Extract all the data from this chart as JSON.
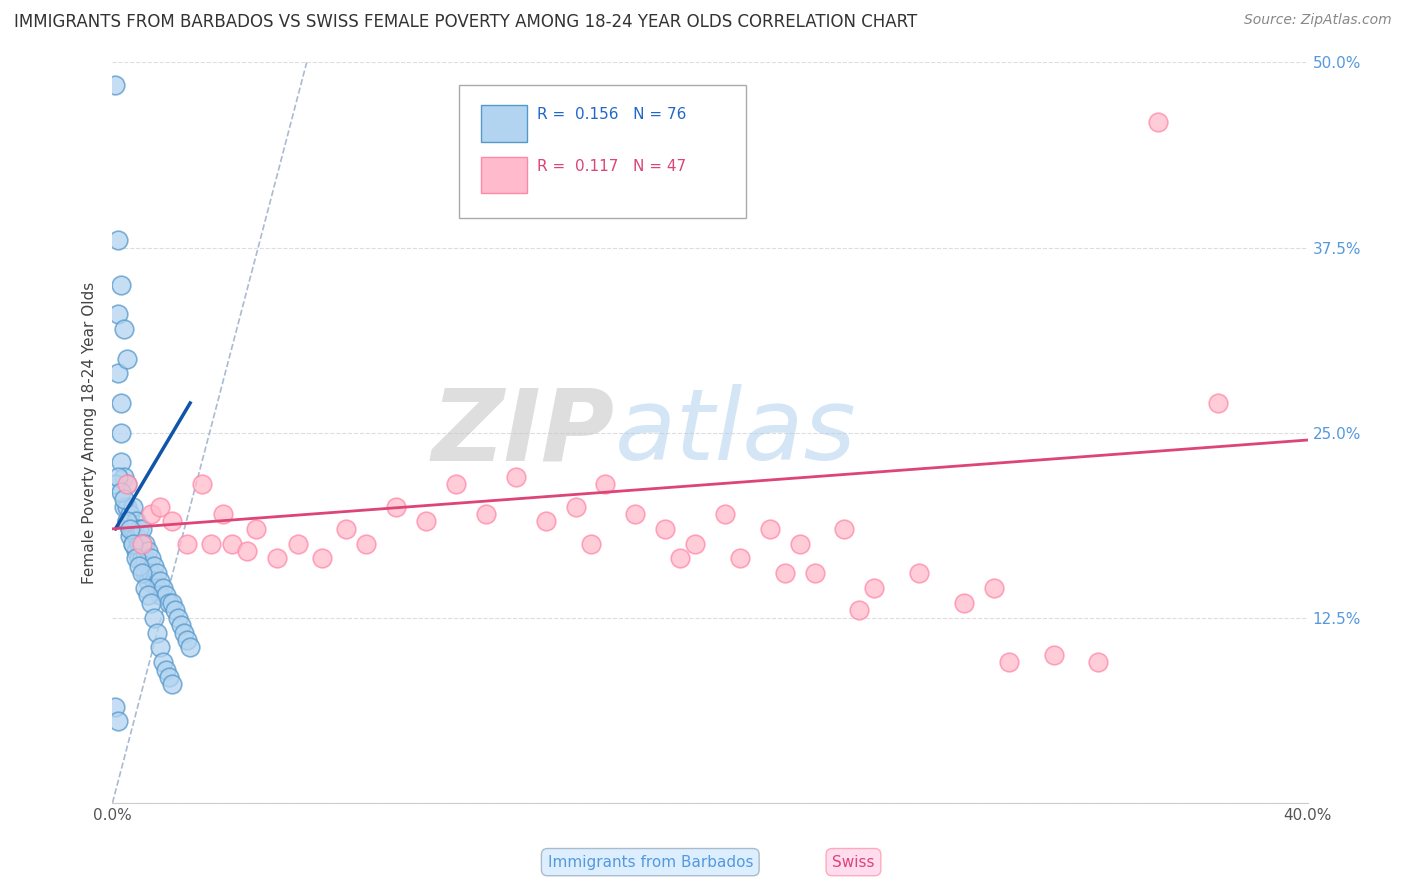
{
  "title": "IMMIGRANTS FROM BARBADOS VS SWISS FEMALE POVERTY AMONG 18-24 YEAR OLDS CORRELATION CHART",
  "source": "Source: ZipAtlas.com",
  "ylabel": "Female Poverty Among 18-24 Year Olds",
  "xlim": [
    0.0,
    0.4
  ],
  "ylim": [
    0.0,
    0.5
  ],
  "xticks": [
    0.0,
    0.4
  ],
  "yticks": [
    0.0,
    0.125,
    0.25,
    0.375,
    0.5
  ],
  "xticklabels": [
    "0.0%",
    "40.0%"
  ],
  "yticklabels": [
    "",
    "12.5%",
    "25.0%",
    "37.5%",
    "50.0%"
  ],
  "right_yticklabels": [
    "",
    "12.5%",
    "25.0%",
    "37.5%",
    "50.0%"
  ],
  "legend_entries": [
    {
      "label": "Immigrants from Barbados",
      "R": "0.156",
      "N": "76",
      "color_face": "#b3d4f0",
      "color_edge": "#5599cc"
    },
    {
      "label": "Swiss",
      "R": "0.117",
      "N": "47",
      "color_face": "#ffbbcc",
      "color_edge": "#ff88aa"
    }
  ],
  "watermark": "ZIPatlas",
  "background_color": "#ffffff",
  "grid_color": "#dddddd",
  "blue_scatter_x": [
    0.001,
    0.002,
    0.002,
    0.003,
    0.003,
    0.003,
    0.004,
    0.004,
    0.005,
    0.005,
    0.005,
    0.006,
    0.006,
    0.006,
    0.007,
    0.007,
    0.007,
    0.008,
    0.008,
    0.008,
    0.009,
    0.009,
    0.009,
    0.01,
    0.01,
    0.01,
    0.011,
    0.011,
    0.011,
    0.012,
    0.012,
    0.012,
    0.013,
    0.013,
    0.014,
    0.014,
    0.015,
    0.015,
    0.016,
    0.016,
    0.017,
    0.018,
    0.019,
    0.02,
    0.021,
    0.022,
    0.023,
    0.024,
    0.025,
    0.026,
    0.001,
    0.002,
    0.003,
    0.004,
    0.005,
    0.006,
    0.007,
    0.008,
    0.009,
    0.01,
    0.011,
    0.012,
    0.013,
    0.014,
    0.015,
    0.016,
    0.017,
    0.018,
    0.019,
    0.02,
    0.002,
    0.003,
    0.004,
    0.005,
    0.001,
    0.002
  ],
  "blue_scatter_y": [
    0.485,
    0.33,
    0.29,
    0.27,
    0.25,
    0.23,
    0.22,
    0.2,
    0.215,
    0.2,
    0.19,
    0.195,
    0.185,
    0.18,
    0.2,
    0.185,
    0.175,
    0.19,
    0.18,
    0.17,
    0.185,
    0.175,
    0.165,
    0.185,
    0.175,
    0.165,
    0.175,
    0.165,
    0.155,
    0.17,
    0.16,
    0.15,
    0.165,
    0.155,
    0.16,
    0.15,
    0.155,
    0.145,
    0.15,
    0.14,
    0.145,
    0.14,
    0.135,
    0.135,
    0.13,
    0.125,
    0.12,
    0.115,
    0.11,
    0.105,
    0.215,
    0.22,
    0.21,
    0.205,
    0.19,
    0.185,
    0.175,
    0.165,
    0.16,
    0.155,
    0.145,
    0.14,
    0.135,
    0.125,
    0.115,
    0.105,
    0.095,
    0.09,
    0.085,
    0.08,
    0.38,
    0.35,
    0.32,
    0.3,
    0.065,
    0.055
  ],
  "pink_scatter_x": [
    0.005,
    0.01,
    0.013,
    0.016,
    0.02,
    0.025,
    0.03,
    0.033,
    0.037,
    0.04,
    0.045,
    0.048,
    0.055,
    0.062,
    0.07,
    0.078,
    0.085,
    0.095,
    0.105,
    0.115,
    0.125,
    0.135,
    0.145,
    0.155,
    0.16,
    0.165,
    0.175,
    0.185,
    0.19,
    0.195,
    0.205,
    0.21,
    0.22,
    0.225,
    0.23,
    0.235,
    0.245,
    0.25,
    0.255,
    0.27,
    0.285,
    0.295,
    0.3,
    0.315,
    0.33,
    0.35,
    0.37
  ],
  "pink_scatter_y": [
    0.215,
    0.175,
    0.195,
    0.2,
    0.19,
    0.175,
    0.215,
    0.175,
    0.195,
    0.175,
    0.17,
    0.185,
    0.165,
    0.175,
    0.165,
    0.185,
    0.175,
    0.2,
    0.19,
    0.215,
    0.195,
    0.22,
    0.19,
    0.2,
    0.175,
    0.215,
    0.195,
    0.185,
    0.165,
    0.175,
    0.195,
    0.165,
    0.185,
    0.155,
    0.175,
    0.155,
    0.185,
    0.13,
    0.145,
    0.155,
    0.135,
    0.145,
    0.095,
    0.1,
    0.095,
    0.46,
    0.27
  ],
  "ref_line_color": "#aabbd0",
  "blue_line_color": "#1155aa",
  "pink_line_color": "#dd4477"
}
